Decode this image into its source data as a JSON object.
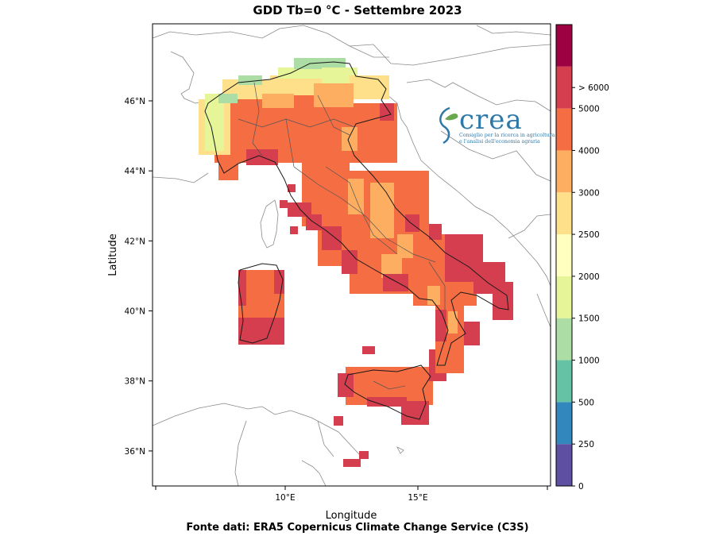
{
  "title": "GDD Tb=0 °C - Settembre 2023",
  "xlabel": "Longitude",
  "ylabel": "Latitude",
  "source": "Fonte dati: ERA5 Copernicus Climate Change Service (C3S)",
  "x_ticks": [
    {
      "lon": 10,
      "label": "10°E"
    },
    {
      "lon": 15,
      "label": "15°E"
    }
  ],
  "y_ticks": [
    {
      "lat": 46,
      "label": "46°N"
    },
    {
      "lat": 44,
      "label": "44°N"
    },
    {
      "lat": 42,
      "label": "42°N"
    },
    {
      "lat": 40,
      "label": "40°N"
    },
    {
      "lat": 38,
      "label": "38°N"
    },
    {
      "lat": 36,
      "label": "36°N"
    }
  ],
  "map_extent": {
    "lon": [
      5,
      20
    ],
    "lat": [
      35,
      48.2
    ]
  },
  "colorbar": {
    "levels": [
      {
        "from": 0,
        "to": 250,
        "color": "#5e4fa2"
      },
      {
        "from": 250,
        "to": 500,
        "color": "#3288bd"
      },
      {
        "from": 500,
        "to": 1000,
        "color": "#66c2a5"
      },
      {
        "from": 1000,
        "to": 1500,
        "color": "#abdda4"
      },
      {
        "from": 1500,
        "to": 2000,
        "color": "#e6f598"
      },
      {
        "from": 2000,
        "to": 2500,
        "color": "#ffffbf"
      },
      {
        "from": 2500,
        "to": 3000,
        "color": "#fee08b"
      },
      {
        "from": 3000,
        "to": 4000,
        "color": "#fdae61"
      },
      {
        "from": 4000,
        "to": 5000,
        "color": "#f46d43"
      },
      {
        "from": 5000,
        "to": 6000,
        "color": "#d53e4f"
      },
      {
        "from": 6000,
        "to": 7000,
        "color": "#9e0142"
      }
    ],
    "labels": [
      "0",
      "250",
      "500",
      "1000",
      "1500",
      "2000",
      "2500",
      "3000",
      "4000",
      "5000",
      "> 6000"
    ]
  },
  "logo": {
    "word": "crea",
    "subtitle_line1": "Consiglio per la ricerca in agricoltura",
    "subtitle_line2": "e l'analisi dell'economia agraria"
  }
}
